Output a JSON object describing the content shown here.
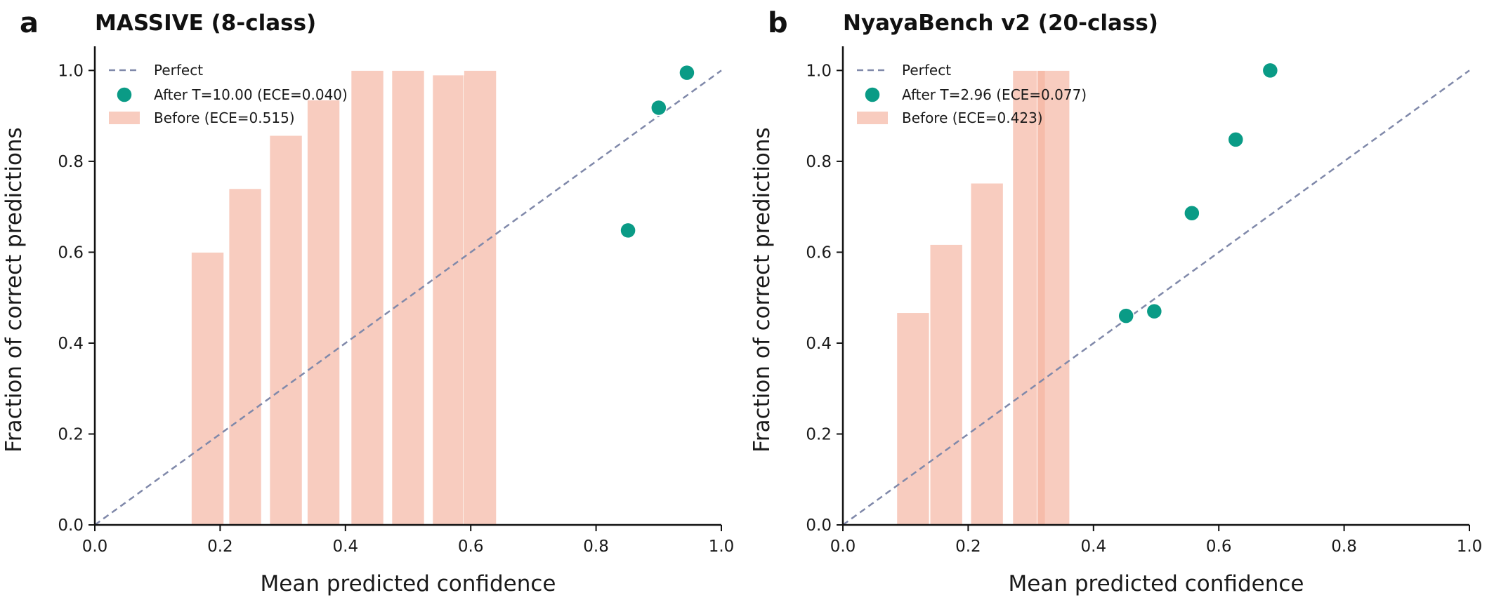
{
  "colors": {
    "bar": "#f4b4a0",
    "point": "#0a9b86",
    "perfect": "#8089aa",
    "axis": "#111111"
  },
  "chart_data": [
    {
      "type": "bar",
      "letter": "a",
      "title": "MASSIVE (8-class)",
      "xlabel": "Mean predicted confidence",
      "ylabel": "Fraction of correct predictions",
      "xlim": [
        0,
        1
      ],
      "ylim": [
        0,
        1.05
      ],
      "xticks": [
        "0.0",
        "0.2",
        "0.4",
        "0.6",
        "0.8",
        "1.0"
      ],
      "yticks": [
        "0.0",
        "0.2",
        "0.4",
        "0.6",
        "0.8",
        "1.0"
      ],
      "legend": {
        "placement": "upper-left",
        "perfect_label": "Perfect",
        "after_label": "After T=10.00 (ECE=0.040)",
        "before_label": "Before (ECE=0.515)"
      },
      "before_bars": [
        {
          "x": 0.18,
          "y": 0.6
        },
        {
          "x": 0.24,
          "y": 0.74
        },
        {
          "x": 0.305,
          "y": 0.857
        },
        {
          "x": 0.365,
          "y": 0.935
        },
        {
          "x": 0.435,
          "y": 1.0
        },
        {
          "x": 0.5,
          "y": 1.0
        },
        {
          "x": 0.565,
          "y": 0.99
        },
        {
          "x": 0.615,
          "y": 1.0
        }
      ],
      "bar_width": 0.052,
      "after_points": [
        {
          "x": 0.851,
          "y": 0.648
        },
        {
          "x": 0.9,
          "y": 0.918
        },
        {
          "x": 0.945,
          "y": 0.995
        }
      ]
    },
    {
      "type": "bar",
      "letter": "b",
      "title": "NyayaBench v2 (20-class)",
      "xlabel": "Mean predicted confidence",
      "ylabel": "Fraction of correct predictions",
      "xlim": [
        0,
        1
      ],
      "ylim": [
        0,
        1.05
      ],
      "xticks": [
        "0.0",
        "0.2",
        "0.4",
        "0.6",
        "0.8",
        "1.0"
      ],
      "yticks": [
        "0.0",
        "0.2",
        "0.4",
        "0.6",
        "0.8",
        "1.0"
      ],
      "legend": {
        "placement": "upper-left",
        "perfect_label": "Perfect",
        "after_label": "After T=2.96 (ECE=0.077)",
        "before_label": "Before (ECE=0.423)"
      },
      "before_bars": [
        {
          "x": 0.112,
          "y": 0.467
        },
        {
          "x": 0.165,
          "y": 0.617
        },
        {
          "x": 0.23,
          "y": 0.752
        },
        {
          "x": 0.297,
          "y": 1.0
        },
        {
          "x": 0.336,
          "y": 1.0
        }
      ],
      "bar_width": 0.052,
      "after_points": [
        {
          "x": 0.452,
          "y": 0.46
        },
        {
          "x": 0.497,
          "y": 0.47
        },
        {
          "x": 0.557,
          "y": 0.686
        },
        {
          "x": 0.627,
          "y": 0.848
        },
        {
          "x": 0.682,
          "y": 1.0
        }
      ]
    }
  ]
}
